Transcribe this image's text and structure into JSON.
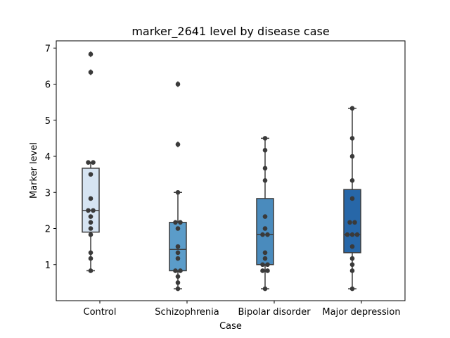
{
  "chart_data": {
    "type": "box",
    "title": "marker_2641 level by disease case",
    "xlabel": "Case",
    "ylabel": "Marker level",
    "categories": [
      "Control",
      "Schizophrenia",
      "Bipolar disorder",
      "Major depression"
    ],
    "ylim": [
      0.0,
      7.2
    ],
    "yticks": [
      1,
      2,
      3,
      4,
      5,
      6,
      7
    ],
    "grid": false,
    "legend": "none",
    "colors": [
      "#d6e4f2",
      "#5b9cc9",
      "#4a8bbd",
      "#2767a8"
    ],
    "outline_color": "#3c3c3c",
    "point_color": "#3a3a3a",
    "boxes": [
      {
        "category": "Control",
        "whisker_low": 0.83,
        "q1": 1.9,
        "median": 2.5,
        "q3": 3.67,
        "whisker_high": 3.83,
        "fliers": [
          6.33,
          6.83
        ]
      },
      {
        "category": "Schizophrenia",
        "whisker_low": 0.33,
        "q1": 0.83,
        "median": 1.42,
        "q3": 2.17,
        "whisker_high": 3.0,
        "fliers": [
          4.33,
          6.0
        ]
      },
      {
        "category": "Bipolar disorder",
        "whisker_low": 0.33,
        "q1": 1.0,
        "median": 1.83,
        "q3": 2.83,
        "whisker_high": 4.5,
        "fliers": []
      },
      {
        "category": "Major depression",
        "whisker_low": 0.33,
        "q1": 1.33,
        "median": 1.83,
        "q3": 3.08,
        "whisker_high": 5.33,
        "fliers": []
      }
    ],
    "points": [
      {
        "category": "Control",
        "values": [
          0.83,
          1.17,
          1.33,
          1.83,
          2.0,
          2.17,
          2.33,
          2.5,
          2.5,
          2.83,
          3.5,
          3.83,
          3.83,
          6.33,
          6.83
        ]
      },
      {
        "category": "Schizophrenia",
        "values": [
          0.33,
          0.5,
          0.67,
          0.83,
          0.83,
          1.17,
          1.33,
          1.5,
          2.0,
          2.17,
          2.17,
          3.0,
          4.33,
          6.0
        ]
      },
      {
        "category": "Bipolar disorder",
        "values": [
          0.33,
          0.83,
          0.83,
          1.0,
          1.0,
          1.17,
          1.33,
          1.83,
          1.83,
          2.0,
          2.33,
          3.33,
          3.67,
          4.17,
          4.5
        ]
      },
      {
        "category": "Major depression",
        "values": [
          0.33,
          0.83,
          1.0,
          1.17,
          1.5,
          1.83,
          1.83,
          1.83,
          2.17,
          2.17,
          2.83,
          3.33,
          4.0,
          4.5,
          5.33
        ]
      }
    ]
  }
}
